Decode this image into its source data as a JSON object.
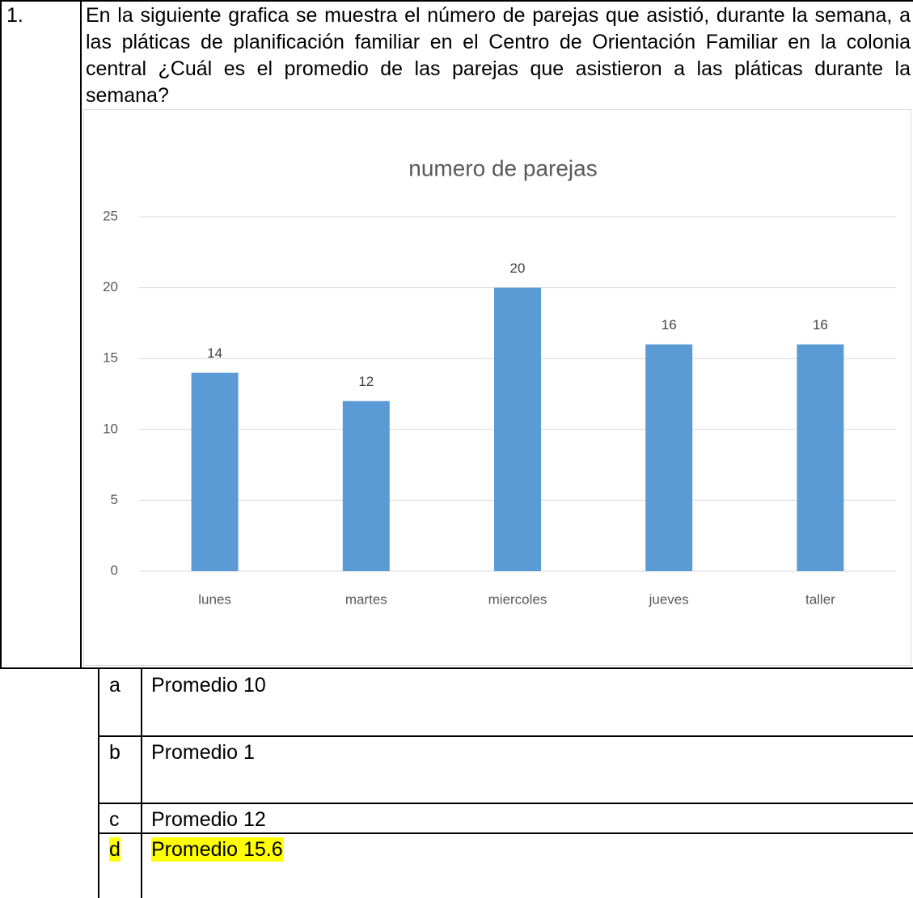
{
  "question": {
    "number": "1.",
    "text": "En la siguiente grafica se muestra el número de parejas que asistió, durante la semana, a las pláticas de planificación familiar en el Centro de Orientación Familiar en la colonia central ¿Cuál es el promedio de las parejas que asistieron a las pláticas durante la semana?"
  },
  "chart_data": {
    "type": "bar",
    "title": "numero de parejas",
    "categories": [
      "lunes",
      "martes",
      "miercoles",
      "jueves",
      "taller"
    ],
    "values": [
      14,
      12,
      20,
      16,
      16
    ],
    "color": "#5b9bd5",
    "ylim": [
      0,
      25
    ],
    "yticks": [
      0,
      5,
      10,
      15,
      20,
      25
    ],
    "grid": true
  },
  "options": [
    {
      "letter": "a",
      "text": "Promedio 10"
    },
    {
      "letter": "b",
      "text": "Promedio 1"
    },
    {
      "letter": "c",
      "text": "Promedio 12"
    },
    {
      "letter": "d",
      "text": "Promedio 15.6",
      "highlight": "#ffff00"
    }
  ]
}
